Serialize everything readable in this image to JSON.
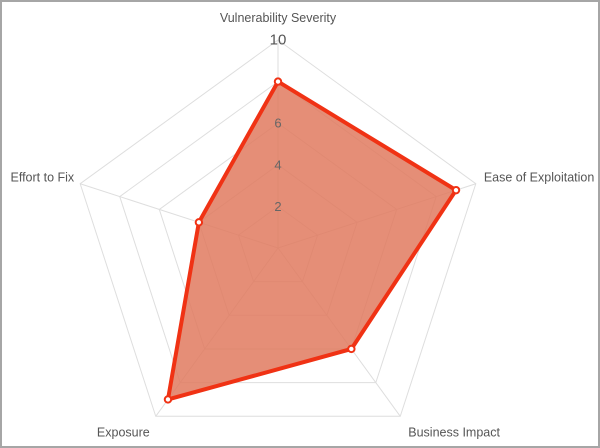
{
  "chart_data": {
    "type": "radar",
    "title": "",
    "axes": [
      "Vulnerability Severity",
      "Ease of Exploitation",
      "Business Impact",
      "Exposure",
      "Effort to Fix"
    ],
    "series": [
      {
        "values": [
          8,
          9,
          6,
          9,
          4
        ]
      }
    ],
    "rlim": [
      0,
      10
    ],
    "ticks": [
      2,
      4,
      6,
      10
    ],
    "grid": true,
    "colors": {
      "stroke": "#f03214",
      "fill": "#e07a5f",
      "grid": "#dedede",
      "point_fill": "#ffffff"
    }
  }
}
